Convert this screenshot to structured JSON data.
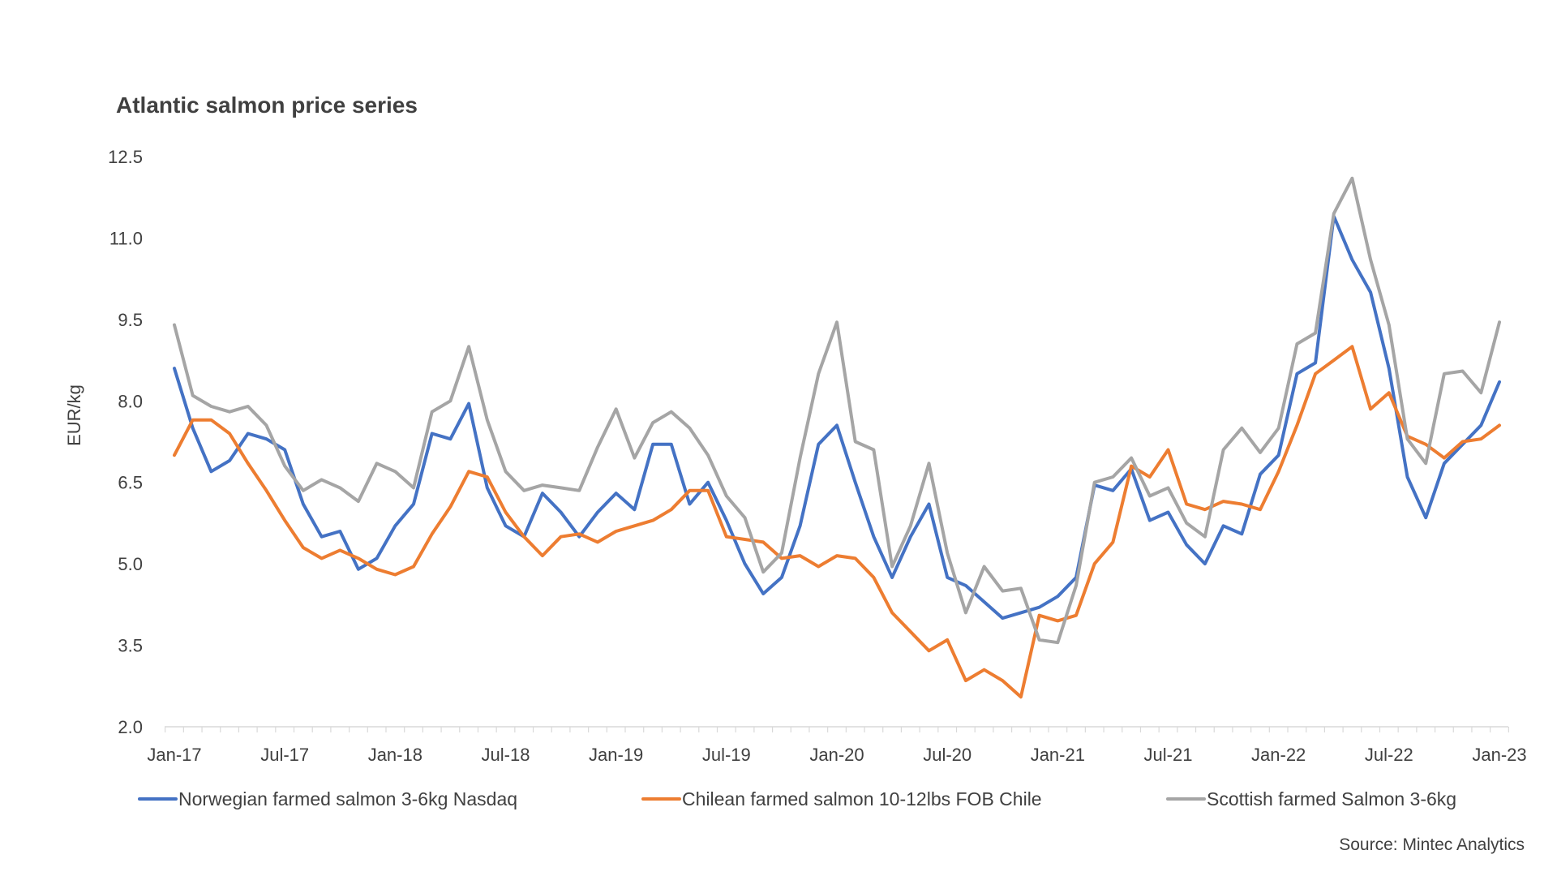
{
  "chart_data": {
    "type": "line",
    "title": "Atlantic salmon price series",
    "ylabel": "EUR/kg",
    "xlabel": "",
    "ylim": [
      2.0,
      12.5
    ],
    "y_ticks": [
      "12.5",
      "11.0",
      "9.5",
      "8.0",
      "6.5",
      "5.0",
      "3.5",
      "2.0"
    ],
    "y_tick_values": [
      12.5,
      11.0,
      9.5,
      8.0,
      6.5,
      5.0,
      3.5,
      2.0
    ],
    "x_ticks": [
      "Jan-17",
      "Jul-17",
      "Jan-18",
      "Jul-18",
      "Jan-19",
      "Jul-19",
      "Jan-20",
      "Jul-20",
      "Jan-21",
      "Jul-21",
      "Jan-22",
      "Jul-22",
      "Jan-23"
    ],
    "x_start": "Jan-17",
    "x_end": "Jan-23",
    "legend_position": "bottom",
    "grid": false,
    "source": "Source: Mintec Analytics",
    "series": [
      {
        "name": "Norwegian farmed salmon 3-6kg Nasdaq",
        "color": "#4472C4",
        "values": [
          8.6,
          7.5,
          6.7,
          6.9,
          7.4,
          7.3,
          7.1,
          6.1,
          5.5,
          5.6,
          4.9,
          5.1,
          5.7,
          6.1,
          7.4,
          7.3,
          7.95,
          6.4,
          5.7,
          5.5,
          6.3,
          5.95,
          5.5,
          5.95,
          6.3,
          6.0,
          7.2,
          7.2,
          6.1,
          6.5,
          5.8,
          5.0,
          4.45,
          4.75,
          5.7,
          7.2,
          7.55,
          6.5,
          5.5,
          4.75,
          5.5,
          6.1,
          4.75,
          4.6,
          4.3,
          4.0,
          4.1,
          4.2,
          4.4,
          4.75,
          6.45,
          6.35,
          6.75,
          5.8,
          5.95,
          5.35,
          5.0,
          5.7,
          5.55,
          6.65,
          7.0,
          8.5,
          8.7,
          11.4,
          10.6,
          10.0,
          8.6,
          6.6,
          5.85,
          6.85,
          7.2,
          7.55,
          8.35
        ]
      },
      {
        "name": "Chilean farmed salmon  10-12lbs FOB Chile",
        "color": "#ED7D31",
        "values": [
          7.0,
          7.65,
          7.65,
          7.4,
          6.85,
          6.35,
          5.8,
          5.3,
          5.1,
          5.25,
          5.1,
          4.9,
          4.8,
          4.95,
          5.55,
          6.05,
          6.7,
          6.6,
          5.95,
          5.5,
          5.15,
          5.5,
          5.55,
          5.4,
          5.6,
          5.7,
          5.8,
          6.0,
          6.35,
          6.35,
          5.5,
          5.45,
          5.4,
          5.1,
          5.15,
          4.95,
          5.15,
          5.1,
          4.75,
          4.1,
          3.75,
          3.4,
          3.6,
          2.85,
          3.05,
          2.85,
          2.55,
          4.05,
          3.95,
          4.05,
          5.0,
          5.4,
          6.8,
          6.6,
          7.1,
          6.1,
          6.0,
          6.15,
          6.1,
          6.0,
          6.7,
          7.55,
          8.5,
          8.75,
          9.0,
          7.85,
          8.15,
          7.35,
          7.2,
          6.95,
          7.25,
          7.3,
          7.55
        ]
      },
      {
        "name": "Scottish farmed Salmon 3-6kg",
        "color": "#A5A5A5",
        "values": [
          9.4,
          8.1,
          7.9,
          7.8,
          7.9,
          7.55,
          6.8,
          6.35,
          6.55,
          6.4,
          6.15,
          6.85,
          6.7,
          6.4,
          7.8,
          8.0,
          9.0,
          7.65,
          6.7,
          6.35,
          6.45,
          6.4,
          6.35,
          7.15,
          7.85,
          6.95,
          7.6,
          7.8,
          7.5,
          7.0,
          6.25,
          5.85,
          4.85,
          5.2,
          6.95,
          8.5,
          9.45,
          7.25,
          7.1,
          4.95,
          5.7,
          6.85,
          5.2,
          4.1,
          4.95,
          4.5,
          4.55,
          3.6,
          3.55,
          4.6,
          6.5,
          6.6,
          6.95,
          6.25,
          6.4,
          5.75,
          5.5,
          7.1,
          7.5,
          7.05,
          7.5,
          9.05,
          9.25,
          11.45,
          12.1,
          10.6,
          9.4,
          7.3,
          6.85,
          8.5,
          8.55,
          8.15,
          9.45
        ]
      }
    ]
  }
}
